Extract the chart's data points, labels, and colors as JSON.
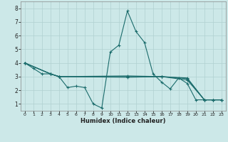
{
  "title": "",
  "xlabel": "Humidex (Indice chaleur)",
  "xlim": [
    -0.5,
    23.5
  ],
  "ylim": [
    0.5,
    8.5
  ],
  "xticks": [
    0,
    1,
    2,
    3,
    4,
    5,
    6,
    7,
    8,
    9,
    10,
    11,
    12,
    13,
    14,
    15,
    16,
    17,
    18,
    19,
    20,
    21,
    22,
    23
  ],
  "yticks": [
    1,
    2,
    3,
    4,
    5,
    6,
    7,
    8
  ],
  "bg_color": "#cce8e8",
  "line_color": "#1a6b6b",
  "grid_color": "#b0d0d0",
  "lines": [
    {
      "x": [
        0,
        1,
        2,
        3,
        4,
        5,
        6,
        7,
        8,
        9,
        10,
        11,
        12,
        13,
        14,
        15,
        16,
        17,
        18,
        19,
        20,
        21,
        22,
        23
      ],
      "y": [
        4.0,
        3.6,
        3.2,
        3.2,
        3.0,
        2.2,
        2.3,
        2.2,
        1.0,
        0.7,
        4.8,
        5.3,
        7.8,
        6.3,
        5.5,
        3.2,
        2.6,
        2.1,
        2.9,
        2.5,
        1.3,
        1.3,
        1.3,
        1.3
      ]
    },
    {
      "x": [
        0,
        3,
        4,
        12,
        16,
        19,
        21,
        22,
        23
      ],
      "y": [
        4.0,
        3.2,
        3.0,
        3.0,
        3.0,
        2.9,
        1.3,
        1.3,
        1.3
      ]
    },
    {
      "x": [
        0,
        3,
        4,
        12,
        16,
        19,
        21,
        22,
        23
      ],
      "y": [
        4.0,
        3.2,
        3.0,
        3.05,
        3.0,
        2.85,
        1.3,
        1.3,
        1.3
      ]
    },
    {
      "x": [
        0,
        3,
        4,
        12,
        16,
        19,
        21,
        22,
        23
      ],
      "y": [
        4.0,
        3.2,
        3.0,
        2.95,
        3.0,
        2.75,
        1.3,
        1.3,
        1.3
      ]
    }
  ]
}
